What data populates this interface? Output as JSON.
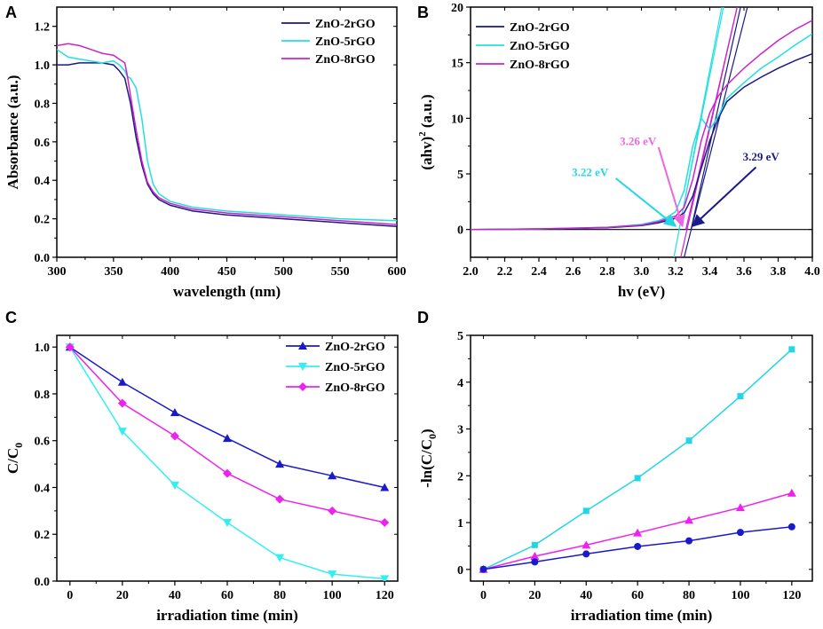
{
  "figure": {
    "panel_letters": [
      "A",
      "B",
      "C",
      "D"
    ]
  },
  "chart_data": [
    {
      "panel": "A",
      "type": "line",
      "title": "",
      "xlabel": "wavelength (nm)",
      "ylabel": "Absorbance (a.u.)",
      "xlim": [
        300,
        600
      ],
      "ylim": [
        0.0,
        1.3
      ],
      "xticks": [
        300,
        350,
        400,
        450,
        500,
        550,
        600
      ],
      "yticks": [
        0.0,
        0.2,
        0.4,
        0.6,
        0.8,
        1.0,
        1.2
      ],
      "ytick_labels": [
        "0.0",
        "0.2",
        "0.4",
        "0.6",
        "0.8",
        "1.0",
        "1.2"
      ],
      "legend": "top-right",
      "series": [
        {
          "name": "ZnO-2rGO",
          "color": "#1a1a80",
          "x": [
            300,
            310,
            320,
            330,
            340,
            350,
            355,
            360,
            365,
            370,
            375,
            380,
            385,
            390,
            400,
            420,
            450,
            500,
            550,
            600
          ],
          "y": [
            1.0,
            1.0,
            1.01,
            1.01,
            1.01,
            1.0,
            0.97,
            0.93,
            0.8,
            0.62,
            0.48,
            0.38,
            0.33,
            0.3,
            0.27,
            0.24,
            0.22,
            0.2,
            0.18,
            0.16
          ]
        },
        {
          "name": "ZnO-5rGO",
          "color": "#22e0e0",
          "x": [
            300,
            310,
            320,
            330,
            340,
            350,
            355,
            360,
            362,
            365,
            370,
            375,
            380,
            385,
            390,
            400,
            420,
            450,
            500,
            550,
            600
          ],
          "y": [
            1.08,
            1.04,
            1.03,
            1.02,
            1.01,
            1.02,
            1.0,
            0.97,
            0.94,
            0.93,
            0.88,
            0.72,
            0.5,
            0.38,
            0.33,
            0.29,
            0.26,
            0.24,
            0.22,
            0.2,
            0.19
          ]
        },
        {
          "name": "ZnO-8rGO",
          "color": "#cc22cc",
          "x": [
            300,
            310,
            320,
            330,
            340,
            350,
            355,
            360,
            362,
            365,
            370,
            375,
            380,
            385,
            390,
            400,
            420,
            450,
            500,
            550,
            600
          ],
          "y": [
            1.1,
            1.11,
            1.1,
            1.08,
            1.06,
            1.05,
            1.03,
            1.01,
            0.95,
            0.84,
            0.66,
            0.5,
            0.39,
            0.34,
            0.31,
            0.28,
            0.25,
            0.23,
            0.21,
            0.19,
            0.17
          ]
        }
      ]
    },
    {
      "panel": "B",
      "type": "line",
      "title": "",
      "xlabel": "hv (eV)",
      "ylabel_main": "(ahv)",
      "ylabel_sup": "2",
      "ylabel_tail": " (a.u.)",
      "xlim": [
        2.0,
        4.0
      ],
      "ylim": [
        -2.5,
        20
      ],
      "xticks": [
        2.0,
        2.2,
        2.4,
        2.6,
        2.8,
        3.0,
        3.2,
        3.4,
        3.6,
        3.8,
        4.0
      ],
      "xtick_labels": [
        "2.0",
        "2.2",
        "2.4",
        "2.6",
        "2.8",
        "3.0",
        "3.2",
        "3.4",
        "3.6",
        "3.8",
        "4.0"
      ],
      "yticks": [
        0,
        5,
        10,
        15,
        20
      ],
      "legend": "top-left",
      "baseline_y": 0,
      "series": [
        {
          "name": "ZnO-2rGO",
          "color": "#1a1a80",
          "x": [
            2.0,
            2.4,
            2.8,
            3.0,
            3.1,
            3.2,
            3.25,
            3.3,
            3.35,
            3.4,
            3.45,
            3.5,
            3.6,
            3.7,
            3.8,
            3.9,
            4.0
          ],
          "y": [
            0,
            0.05,
            0.15,
            0.35,
            0.6,
            1.0,
            1.5,
            3.0,
            5.5,
            8.0,
            10.0,
            11.5,
            12.8,
            13.7,
            14.5,
            15.2,
            15.8
          ]
        },
        {
          "name": "ZnO-5rGO",
          "color": "#22e0e0",
          "x": [
            2.0,
            2.4,
            2.8,
            3.0,
            3.1,
            3.15,
            3.2,
            3.25,
            3.3,
            3.35,
            3.4,
            3.45,
            3.5,
            3.6,
            3.7,
            3.8,
            3.9,
            4.0
          ],
          "y": [
            0,
            0.05,
            0.2,
            0.45,
            0.8,
            1.1,
            1.6,
            3.5,
            7.5,
            10.0,
            9.0,
            10.2,
            11.8,
            13.2,
            14.5,
            15.5,
            16.6,
            17.6
          ]
        },
        {
          "name": "ZnO-8rGO",
          "color": "#cc22cc",
          "x": [
            2.0,
            2.4,
            2.8,
            3.0,
            3.1,
            3.2,
            3.25,
            3.3,
            3.35,
            3.4,
            3.45,
            3.5,
            3.6,
            3.7,
            3.8,
            3.9,
            4.0
          ],
          "y": [
            0,
            0.05,
            0.2,
            0.4,
            0.7,
            1.2,
            2.0,
            4.5,
            8.0,
            10.5,
            12.0,
            13.0,
            14.5,
            15.8,
            17.0,
            18.0,
            18.8
          ]
        }
      ],
      "tangents": [
        {
          "color": "#22e0e0",
          "x": [
            3.22,
            3.48
          ],
          "y": [
            0,
            20
          ]
        },
        {
          "color": "#1a1a80",
          "x": [
            3.29,
            3.58
          ],
          "y": [
            0,
            20
          ]
        },
        {
          "color": "#cc22cc",
          "x": [
            3.26,
            3.56
          ],
          "y": [
            0,
            20
          ]
        },
        {
          "color": "#1a1a80",
          "x": [
            3.25,
            3.62
          ],
          "y": [
            -2.5,
            20
          ]
        },
        {
          "color": "#22e0e0",
          "x": [
            3.19,
            3.47
          ],
          "y": [
            -2.5,
            20
          ]
        },
        {
          "color": "#cc22cc",
          "x": [
            3.23,
            3.56
          ],
          "y": [
            -2.5,
            20
          ]
        }
      ],
      "annotations": [
        {
          "text": "3.22 eV",
          "color": "#22d6e6",
          "text_at": [
            2.7,
            4.8
          ],
          "arrow_from": [
            2.85,
            4.6
          ],
          "arrow_to": [
            3.2,
            0.3
          ]
        },
        {
          "text": "3.26 eV",
          "color": "#ee66dd",
          "text_at": [
            2.98,
            7.6
          ],
          "arrow_from": [
            3.1,
            7.4
          ],
          "arrow_to": [
            3.24,
            0.3
          ]
        },
        {
          "text": "3.29 eV",
          "color": "#1a1a90",
          "text_at": [
            3.7,
            6.2
          ],
          "arrow_from": [
            3.67,
            5.6
          ],
          "arrow_to": [
            3.3,
            0.3
          ]
        }
      ]
    },
    {
      "panel": "C",
      "type": "line",
      "title": "",
      "xlabel": "irradiation time (min)",
      "ylabel_main": "C/C",
      "ylabel_sub": "0",
      "xlim": [
        -5,
        125
      ],
      "ylim": [
        0.0,
        1.05
      ],
      "xticks": [
        0,
        20,
        40,
        60,
        80,
        100,
        120
      ],
      "yticks": [
        0.0,
        0.2,
        0.4,
        0.6,
        0.8,
        1.0
      ],
      "ytick_labels": [
        "0.0",
        "0.2",
        "0.4",
        "0.6",
        "0.8",
        "1.0"
      ],
      "legend": "top-right",
      "series": [
        {
          "name": "ZnO-2rGO",
          "color": "#1a1acc",
          "marker": "triangle-up",
          "x": [
            0,
            20,
            40,
            60,
            80,
            100,
            120
          ],
          "y": [
            1.0,
            0.85,
            0.72,
            0.61,
            0.5,
            0.45,
            0.4
          ]
        },
        {
          "name": "ZnO-5rGO",
          "color": "#33f0f0",
          "marker": "triangle-down",
          "x": [
            0,
            20,
            40,
            60,
            80,
            100,
            120
          ],
          "y": [
            1.0,
            0.64,
            0.41,
            0.25,
            0.1,
            0.03,
            0.01
          ]
        },
        {
          "name": "ZnO-8rGO",
          "color": "#ee22ee",
          "marker": "diamond",
          "x": [
            0,
            20,
            40,
            60,
            80,
            100,
            120
          ],
          "y": [
            1.0,
            0.76,
            0.62,
            0.46,
            0.35,
            0.3,
            0.25
          ]
        }
      ]
    },
    {
      "panel": "D",
      "type": "scatter",
      "title": "",
      "xlabel": "irradiation time (min)",
      "ylabel_pre": "-ln(C/C",
      "ylabel_sub": "0",
      "ylabel_post": ")",
      "xlim": [
        -5,
        128
      ],
      "ylim": [
        -0.25,
        5.0
      ],
      "xticks": [
        0,
        20,
        40,
        60,
        80,
        100,
        120
      ],
      "yticks": [
        0,
        1,
        2,
        3,
        4,
        5
      ],
      "legend": "none",
      "series": [
        {
          "name": "ZnO-5rGO",
          "color": "#22d6e6",
          "marker": "square",
          "x": [
            0,
            20,
            40,
            60,
            80,
            100,
            120
          ],
          "y": [
            0,
            0.52,
            1.25,
            1.95,
            2.75,
            3.7,
            4.7
          ]
        },
        {
          "name": "ZnO-8rGO",
          "color": "#ee22ee",
          "marker": "triangle-up",
          "x": [
            0,
            20,
            40,
            60,
            80,
            100,
            120
          ],
          "y": [
            0,
            0.28,
            0.52,
            0.78,
            1.05,
            1.32,
            1.63
          ]
        },
        {
          "name": "ZnO-2rGO",
          "color": "#1a1acc",
          "marker": "circle",
          "x": [
            0,
            20,
            40,
            60,
            80,
            100,
            120
          ],
          "y": [
            0,
            0.16,
            0.33,
            0.49,
            0.61,
            0.79,
            0.91
          ]
        }
      ]
    }
  ]
}
